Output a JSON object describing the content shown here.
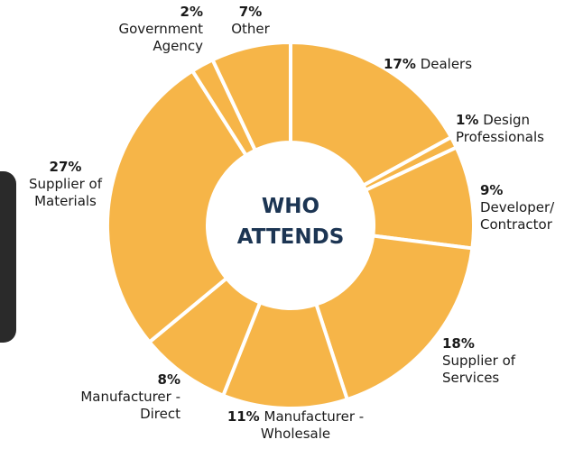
{
  "chart_data": {
    "type": "donut",
    "center_text": [
      "WHO",
      "ATTENDS"
    ],
    "categories": [
      "Dealers",
      "Design Professionals",
      "Developer/ Contractor",
      "Supplier of Services",
      "Manufacturer - Wholesale",
      "Manufacturer - Direct",
      "Supplier of Materials",
      "Government Agency",
      "Other"
    ],
    "values": [
      17,
      1,
      9,
      18,
      11,
      8,
      27,
      2,
      7
    ],
    "value_labels": [
      "17%",
      "1%",
      "9%",
      "18%",
      "11%",
      "8%",
      "27%",
      "2%",
      "7%"
    ],
    "color": "#f6b548"
  }
}
